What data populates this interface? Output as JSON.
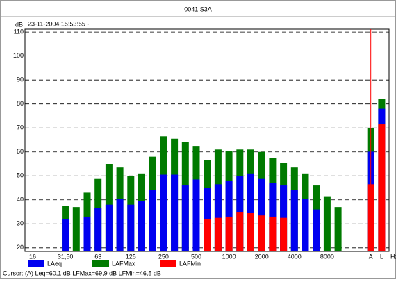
{
  "chart_data": {
    "type": "bar",
    "title": "0041.S3A",
    "subtitle": "23-11-2004 15:53:55 -",
    "y_label": "dB",
    "x_label": "Hz",
    "annotation": "Cursor: (A)  Leq=60,1 dB  LFMax=69,9 dB  LFMin=46,5 dB",
    "categories": [
      "16",
      null,
      null,
      "31,50",
      null,
      null,
      "63",
      null,
      null,
      "125",
      null,
      null,
      "250",
      null,
      null,
      "500",
      null,
      null,
      "1000",
      null,
      null,
      "2000",
      null,
      null,
      "4000",
      null,
      null,
      "8000",
      null,
      null,
      null,
      "A",
      "L"
    ],
    "series": [
      {
        "name": "LAeq",
        "color": "#0000f0",
        "values": [
          null,
          null,
          null,
          32,
          null,
          33,
          36.5,
          38,
          40.5,
          38,
          39.5,
          44,
          50.5,
          50.5,
          46,
          48.5,
          45,
          46.5,
          48,
          50,
          51,
          49,
          47,
          46,
          44,
          40.5,
          36,
          null,
          null,
          null,
          null,
          60.1,
          78
        ]
      },
      {
        "name": "LAFMax",
        "color": "#007a00",
        "values": [
          null,
          null,
          null,
          37.5,
          37,
          43,
          49,
          55,
          53.5,
          50,
          51,
          58,
          66.5,
          65.5,
          64,
          62.5,
          56.5,
          61,
          60.5,
          61,
          61,
          60,
          57.5,
          55.5,
          53.5,
          51,
          46,
          41.5,
          37,
          null,
          null,
          69.9,
          82
        ]
      },
      {
        "name": "LAFMin",
        "color": "#ff0000",
        "values": [
          null,
          null,
          null,
          null,
          null,
          null,
          null,
          null,
          null,
          null,
          null,
          null,
          null,
          null,
          null,
          null,
          32,
          32.5,
          33,
          35,
          34.5,
          33.5,
          33,
          32.5,
          null,
          null,
          null,
          null,
          null,
          null,
          null,
          46.5,
          71.5
        ]
      }
    ],
    "ylim": [
      18.5,
      111.2
    ],
    "yticks": [
      20,
      30,
      40,
      50,
      60,
      70,
      80,
      90,
      100,
      110
    ],
    "grid": true
  }
}
